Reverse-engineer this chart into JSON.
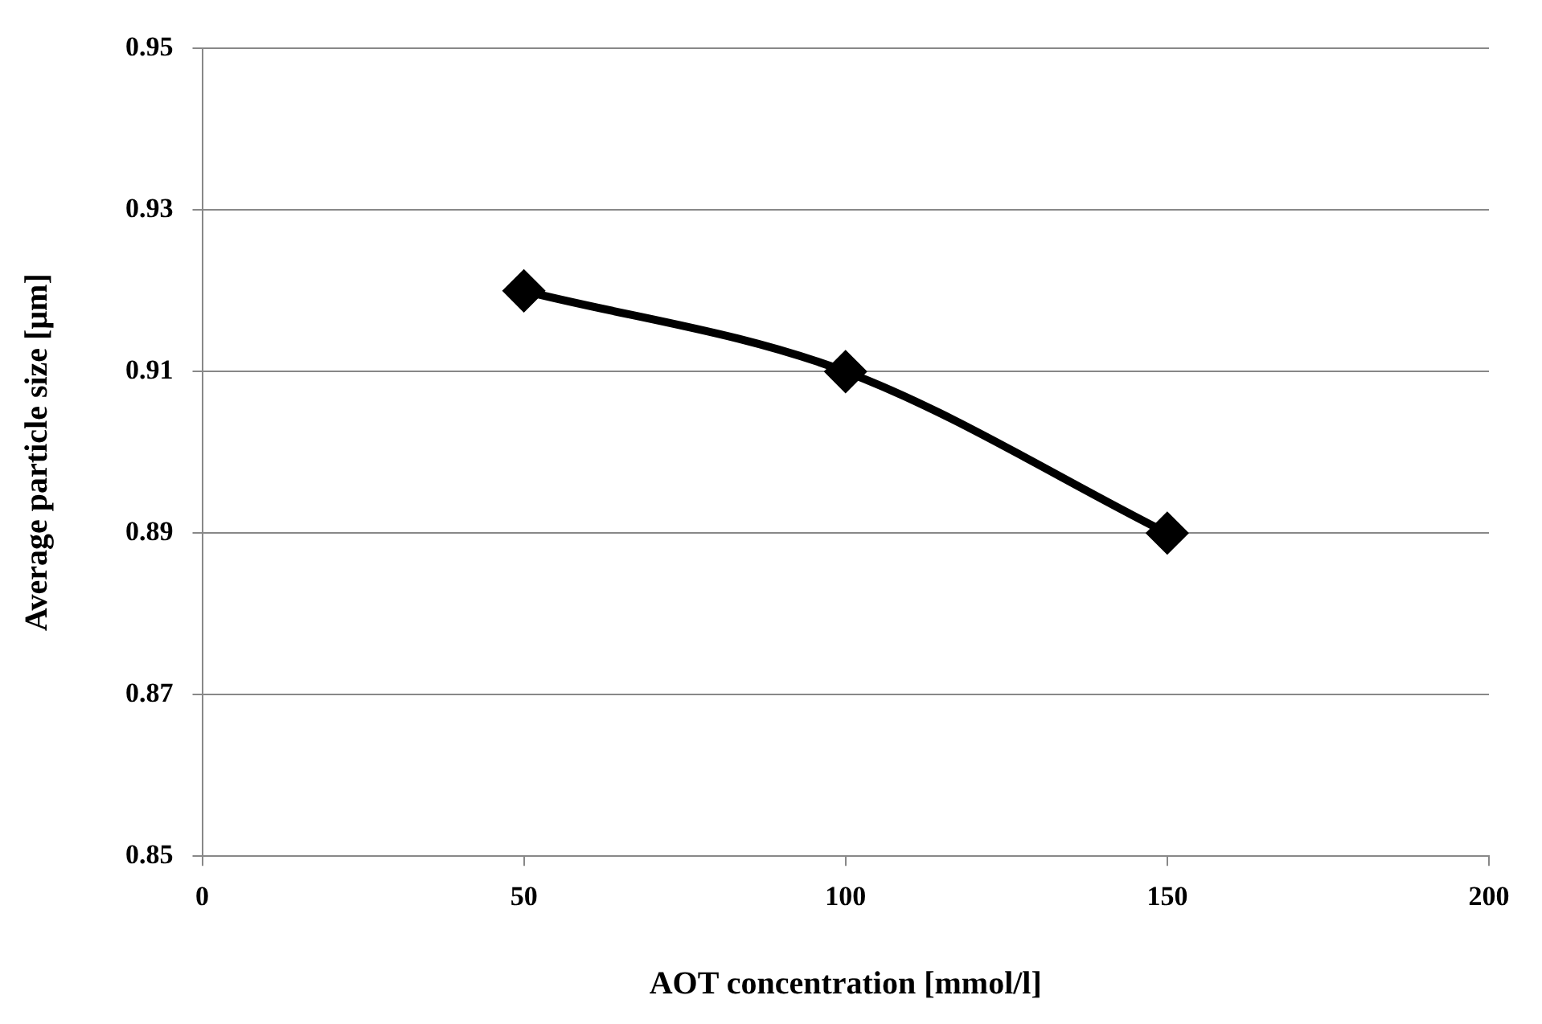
{
  "chart_data": {
    "type": "line",
    "xlabel": "AOT concentration [mmol/l]",
    "ylabel": "Average particle size [μm]",
    "x": [
      50,
      100,
      150
    ],
    "series": [
      {
        "color": "#000000",
        "values": [
          0.92,
          0.91,
          0.89
        ]
      }
    ],
    "xlim": [
      0,
      200
    ],
    "xticks": [
      0,
      50,
      100,
      150,
      200
    ],
    "ylim": [
      0.85,
      0.95
    ],
    "yticks": [
      0.85,
      0.87,
      0.89,
      0.91,
      0.93,
      0.95
    ],
    "grid": "y",
    "legend": false,
    "marker": "diamond",
    "line_style": "solid"
  }
}
